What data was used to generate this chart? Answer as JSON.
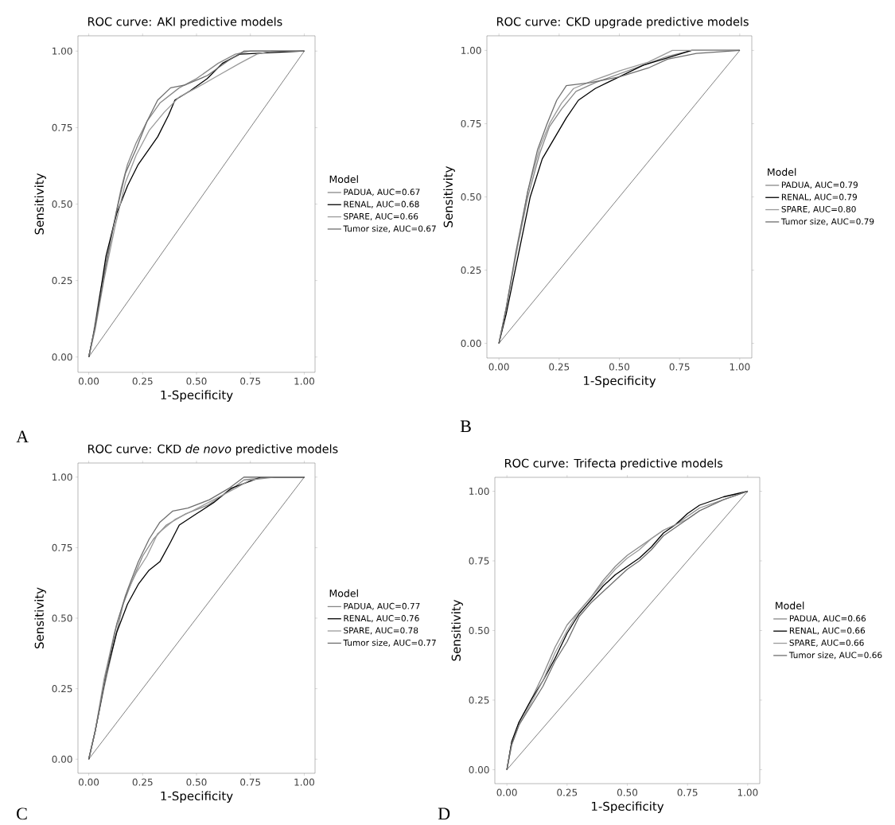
{
  "chart_data": [
    {
      "type": "line",
      "title": "ROC curve: AKI predictive models",
      "xlabel": "1-Specificity",
      "ylabel": "Sensitivity",
      "legend_title": "Model",
      "legend": "right",
      "xlim": [
        -0.05,
        1.05
      ],
      "ylim": [
        -0.05,
        1.05
      ],
      "xticks": [
        {
          "value": 0,
          "label": "0.00"
        },
        {
          "value": 0.25,
          "label": "0.25"
        },
        {
          "value": 0.5,
          "label": "0.50"
        },
        {
          "value": 0.75,
          "label": "0.75"
        },
        {
          "value": 1,
          "label": "1.00"
        }
      ],
      "yticks": [
        {
          "value": 0,
          "label": "0.00"
        },
        {
          "value": 0.25,
          "label": "0.25"
        },
        {
          "value": 0.5,
          "label": "0.50"
        },
        {
          "value": 0.75,
          "label": "0.75"
        },
        {
          "value": 1,
          "label": "1.00"
        }
      ],
      "annotations": [
        "A"
      ],
      "series": [
        {
          "name": "PADUA, AUC=0.67",
          "color": "#888888",
          "x": [
            0,
            0.02,
            0.05,
            0.1,
            0.15,
            0.18,
            0.22,
            0.27,
            0.33,
            0.42,
            0.5,
            0.6,
            0.68,
            0.75,
            1
          ],
          "values": [
            0,
            0.07,
            0.2,
            0.38,
            0.55,
            0.63,
            0.7,
            0.77,
            0.83,
            0.88,
            0.91,
            0.96,
            0.99,
            1,
            1
          ]
        },
        {
          "name": "RENAL, AUC=0.68",
          "color": "#000000",
          "x": [
            0,
            0.03,
            0.08,
            0.13,
            0.18,
            0.23,
            0.28,
            0.32,
            0.37,
            0.4,
            0.47,
            0.55,
            0.62,
            0.7,
            1
          ],
          "values": [
            0,
            0.1,
            0.33,
            0.47,
            0.56,
            0.63,
            0.68,
            0.72,
            0.79,
            0.84,
            0.87,
            0.91,
            0.96,
            0.99,
            1
          ]
        },
        {
          "name": "SPARE, AUC=0.66",
          "color": "#9a9a9a",
          "x": [
            0,
            0.03,
            0.07,
            0.12,
            0.17,
            0.22,
            0.28,
            0.35,
            0.42,
            0.5,
            0.6,
            0.7,
            0.78,
            0.85,
            1
          ],
          "values": [
            0,
            0.09,
            0.25,
            0.42,
            0.57,
            0.66,
            0.74,
            0.8,
            0.85,
            0.88,
            0.92,
            0.96,
            0.99,
            1,
            1
          ]
        },
        {
          "name": "Tumor size, AUC=0.67",
          "color": "#6e6e6e",
          "x": [
            0,
            0.03,
            0.08,
            0.13,
            0.17,
            0.22,
            0.27,
            0.32,
            0.38,
            0.45,
            0.55,
            0.65,
            0.72,
            0.95,
            1
          ],
          "values": [
            0,
            0.1,
            0.3,
            0.48,
            0.6,
            0.68,
            0.77,
            0.84,
            0.88,
            0.89,
            0.92,
            0.97,
            1,
            1,
            1
          ]
        },
        {
          "color": "#000000",
          "x": [
            0,
            1
          ],
          "values": [
            0,
            1
          ]
        }
      ]
    },
    {
      "type": "line",
      "title": "ROC curve: CKD upgrade predictive models",
      "xlabel": "1-Specificity",
      "ylabel": "Sensitivity",
      "legend_title": "Model",
      "legend": "right",
      "xlim": [
        -0.05,
        1.05
      ],
      "ylim": [
        -0.05,
        1.05
      ],
      "xticks": [
        {
          "value": 0,
          "label": "0.00"
        },
        {
          "value": 0.25,
          "label": "0.25"
        },
        {
          "value": 0.5,
          "label": "0.50"
        },
        {
          "value": 0.75,
          "label": "0.75"
        },
        {
          "value": 1,
          "label": "1.00"
        }
      ],
      "yticks": [
        {
          "value": 0,
          "label": "0.00"
        },
        {
          "value": 0.25,
          "label": "0.25"
        },
        {
          "value": 0.5,
          "label": "0.50"
        },
        {
          "value": 0.75,
          "label": "0.75"
        },
        {
          "value": 1,
          "label": "1.00"
        }
      ],
      "annotations": [
        "B"
      ],
      "series": [
        {
          "name": "PADUA, AUC=0.79",
          "color": "#888888",
          "x": [
            0,
            0.03,
            0.07,
            0.12,
            0.17,
            0.21,
            0.26,
            0.32,
            0.4,
            0.5,
            0.6,
            0.7,
            0.8,
            1
          ],
          "values": [
            0,
            0.12,
            0.3,
            0.5,
            0.65,
            0.74,
            0.8,
            0.86,
            0.89,
            0.92,
            0.95,
            0.98,
            1,
            1
          ]
        },
        {
          "name": "RENAL, AUC=0.79",
          "color": "#000000",
          "x": [
            0,
            0.03,
            0.08,
            0.13,
            0.18,
            0.23,
            0.28,
            0.33,
            0.4,
            0.5,
            0.6,
            0.72,
            0.8,
            1
          ],
          "values": [
            0,
            0.1,
            0.3,
            0.5,
            0.63,
            0.7,
            0.77,
            0.83,
            0.87,
            0.91,
            0.95,
            0.98,
            1,
            1
          ]
        },
        {
          "name": "SPARE, AUC=0.80",
          "color": "#9a9a9a",
          "x": [
            0,
            0.03,
            0.07,
            0.12,
            0.17,
            0.21,
            0.26,
            0.31,
            0.4,
            0.5,
            0.62,
            0.72,
            1
          ],
          "values": [
            0,
            0.12,
            0.3,
            0.52,
            0.67,
            0.75,
            0.82,
            0.87,
            0.9,
            0.93,
            0.96,
            1,
            1
          ]
        },
        {
          "name": "Tumor size, AUC=0.79",
          "color": "#6e6e6e",
          "x": [
            0,
            0.03,
            0.07,
            0.12,
            0.16,
            0.2,
            0.24,
            0.28,
            0.38,
            0.5,
            0.62,
            0.7,
            0.82,
            1
          ],
          "values": [
            0,
            0.12,
            0.31,
            0.52,
            0.66,
            0.75,
            0.83,
            0.88,
            0.89,
            0.91,
            0.94,
            0.97,
            0.99,
            1
          ]
        },
        {
          "color": "#000000",
          "x": [
            0,
            1
          ],
          "values": [
            0,
            1
          ]
        }
      ]
    },
    {
      "type": "line",
      "title": "ROC curve: CKD *de novo* predictive models",
      "xlabel": "1-Specificity",
      "ylabel": "Sensitivity",
      "legend_title": "Model",
      "legend": "right",
      "xlim": [
        -0.05,
        1.05
      ],
      "ylim": [
        -0.05,
        1.05
      ],
      "xticks": [
        {
          "value": 0,
          "label": "0.00"
        },
        {
          "value": 0.25,
          "label": "0.25"
        },
        {
          "value": 0.5,
          "label": "0.50"
        },
        {
          "value": 0.75,
          "label": "0.75"
        },
        {
          "value": 1,
          "label": "1.00"
        }
      ],
      "yticks": [
        {
          "value": 0,
          "label": "0.00"
        },
        {
          "value": 0.25,
          "label": "0.25"
        },
        {
          "value": 0.5,
          "label": "0.50"
        },
        {
          "value": 0.75,
          "label": "0.75"
        },
        {
          "value": 1,
          "label": "1.00"
        }
      ],
      "annotations": [
        "C"
      ],
      "series": [
        {
          "name": "PADUA, AUC=0.77",
          "color": "#888888",
          "x": [
            0,
            0.03,
            0.07,
            0.12,
            0.16,
            0.2,
            0.25,
            0.3,
            0.36,
            0.45,
            0.55,
            0.65,
            0.72,
            0.85,
            1
          ],
          "values": [
            0,
            0.1,
            0.25,
            0.42,
            0.55,
            0.63,
            0.72,
            0.78,
            0.83,
            0.87,
            0.9,
            0.95,
            0.99,
            1,
            1
          ]
        },
        {
          "name": "RENAL, AUC=0.76",
          "color": "#000000",
          "x": [
            0,
            0.03,
            0.08,
            0.13,
            0.18,
            0.23,
            0.28,
            0.33,
            0.38,
            0.42,
            0.5,
            0.58,
            0.66,
            0.8,
            1
          ],
          "values": [
            0,
            0.1,
            0.3,
            0.45,
            0.55,
            0.62,
            0.67,
            0.7,
            0.77,
            0.83,
            0.87,
            0.91,
            0.96,
            1,
            1
          ]
        },
        {
          "name": "SPARE, AUC=0.78",
          "color": "#9a9a9a",
          "x": [
            0,
            0.03,
            0.07,
            0.12,
            0.17,
            0.22,
            0.27,
            0.32,
            0.4,
            0.48,
            0.58,
            0.68,
            0.75,
            0.87,
            1
          ],
          "values": [
            0,
            0.1,
            0.28,
            0.45,
            0.58,
            0.66,
            0.72,
            0.8,
            0.85,
            0.88,
            0.92,
            0.96,
            0.99,
            1,
            1
          ]
        },
        {
          "name": "Tumor size, AUC=0.77",
          "color": "#6e6e6e",
          "x": [
            0,
            0.03,
            0.08,
            0.13,
            0.18,
            0.23,
            0.28,
            0.33,
            0.39,
            0.46,
            0.56,
            0.65,
            0.72,
            0.95,
            1
          ],
          "values": [
            0,
            0.1,
            0.3,
            0.48,
            0.6,
            0.7,
            0.78,
            0.84,
            0.88,
            0.89,
            0.92,
            0.96,
            1,
            1,
            1
          ]
        },
        {
          "color": "#000000",
          "x": [
            0,
            1
          ],
          "values": [
            0,
            1
          ]
        }
      ]
    },
    {
      "type": "line",
      "title": "ROC curve: Trifecta predictive models",
      "xlabel": "1-Specificity",
      "ylabel": "Sensitivity",
      "legend_title": "Model",
      "legend": "right",
      "xlim": [
        -0.05,
        1.05
      ],
      "ylim": [
        -0.05,
        1.05
      ],
      "xticks": [
        {
          "value": 0,
          "label": "0.00"
        },
        {
          "value": 0.25,
          "label": "0.25"
        },
        {
          "value": 0.5,
          "label": "0.50"
        },
        {
          "value": 0.75,
          "label": "0.75"
        },
        {
          "value": 1,
          "label": "1.00"
        }
      ],
      "yticks": [
        {
          "value": 0,
          "label": "0.00"
        },
        {
          "value": 0.25,
          "label": "0.25"
        },
        {
          "value": 0.5,
          "label": "0.50"
        },
        {
          "value": 0.75,
          "label": "0.75"
        },
        {
          "value": 1,
          "label": "1.00"
        }
      ],
      "annotations": [
        "D"
      ],
      "series": [
        {
          "name": "PADUA, AUC=0.66",
          "color": "#888888",
          "x": [
            0,
            0.02,
            0.05,
            0.1,
            0.15,
            0.2,
            0.25,
            0.3,
            0.35,
            0.4,
            0.45,
            0.5,
            0.55,
            0.6,
            0.65,
            0.7,
            0.75,
            0.8,
            0.9,
            1
          ],
          "values": [
            0,
            0.1,
            0.17,
            0.25,
            0.34,
            0.44,
            0.52,
            0.57,
            0.62,
            0.68,
            0.73,
            0.77,
            0.8,
            0.83,
            0.86,
            0.88,
            0.91,
            0.94,
            0.97,
            1
          ]
        },
        {
          "name": "RENAL, AUC=0.66",
          "color": "#000000",
          "x": [
            0,
            0.02,
            0.05,
            0.1,
            0.15,
            0.2,
            0.25,
            0.3,
            0.35,
            0.4,
            0.45,
            0.5,
            0.55,
            0.6,
            0.65,
            0.7,
            0.75,
            0.8,
            0.9,
            1
          ],
          "values": [
            0,
            0.1,
            0.17,
            0.25,
            0.32,
            0.4,
            0.49,
            0.56,
            0.61,
            0.66,
            0.7,
            0.73,
            0.76,
            0.8,
            0.85,
            0.88,
            0.92,
            0.95,
            0.98,
            1
          ]
        },
        {
          "name": "SPARE, AUC=0.66",
          "color": "#9a9a9a",
          "x": [
            0,
            0.02,
            0.05,
            0.1,
            0.15,
            0.2,
            0.25,
            0.3,
            0.35,
            0.4,
            0.45,
            0.5,
            0.55,
            0.6,
            0.65,
            0.7,
            0.75,
            0.8,
            0.9,
            1
          ],
          "values": [
            0,
            0.09,
            0.16,
            0.24,
            0.32,
            0.42,
            0.5,
            0.57,
            0.62,
            0.67,
            0.72,
            0.76,
            0.79,
            0.83,
            0.86,
            0.88,
            0.9,
            0.93,
            0.97,
            1
          ]
        },
        {
          "name": "Tumor size, AUC=0.66",
          "color": "#6e6e6e",
          "x": [
            0,
            0.02,
            0.05,
            0.1,
            0.15,
            0.2,
            0.25,
            0.3,
            0.35,
            0.4,
            0.45,
            0.5,
            0.55,
            0.6,
            0.65,
            0.7,
            0.75,
            0.8,
            0.9,
            1
          ],
          "values": [
            0,
            0.09,
            0.16,
            0.23,
            0.3,
            0.39,
            0.46,
            0.55,
            0.6,
            0.64,
            0.68,
            0.72,
            0.75,
            0.79,
            0.84,
            0.87,
            0.9,
            0.93,
            0.97,
            1
          ]
        },
        {
          "color": "#000000",
          "x": [
            0,
            1
          ],
          "values": [
            0,
            1
          ]
        }
      ]
    }
  ]
}
